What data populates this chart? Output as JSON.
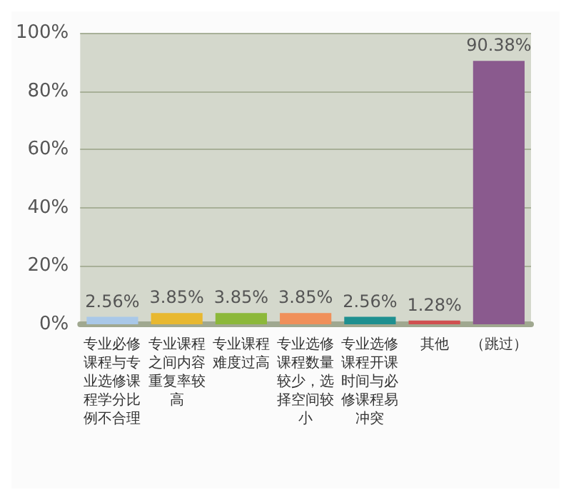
{
  "chart_data": {
    "type": "bar",
    "categories": [
      "专业必修课程与专业选修课程学分比例不合理",
      "专业课程之间内容重复率较高",
      "专业课程难度过高",
      "专业选修课程数量较少，选择空间较小",
      "专业选修课程开课时间与必修课程易冲突",
      "其他",
      "（跳过）"
    ],
    "values": [
      2.56,
      3.85,
      3.85,
      3.85,
      2.56,
      1.28,
      90.38
    ],
    "colors": [
      "#a9c8e8",
      "#e8b830",
      "#8cb83a",
      "#f0905a",
      "#1f9090",
      "#d05050",
      "#8a5a8e"
    ],
    "value_labels": [
      "2.56%",
      "3.85%",
      "3.85%",
      "3.85%",
      "2.56%",
      "1.28%",
      "90.38%"
    ],
    "ylim": [
      0,
      100
    ],
    "yticks": [
      {
        "value": 0,
        "label": "0%"
      },
      {
        "value": 20,
        "label": "20%"
      },
      {
        "value": 40,
        "label": "40%"
      },
      {
        "value": 60,
        "label": "60%"
      },
      {
        "value": 80,
        "label": "80%"
      },
      {
        "value": 100,
        "label": "100%"
      }
    ],
    "grid": "y"
  }
}
